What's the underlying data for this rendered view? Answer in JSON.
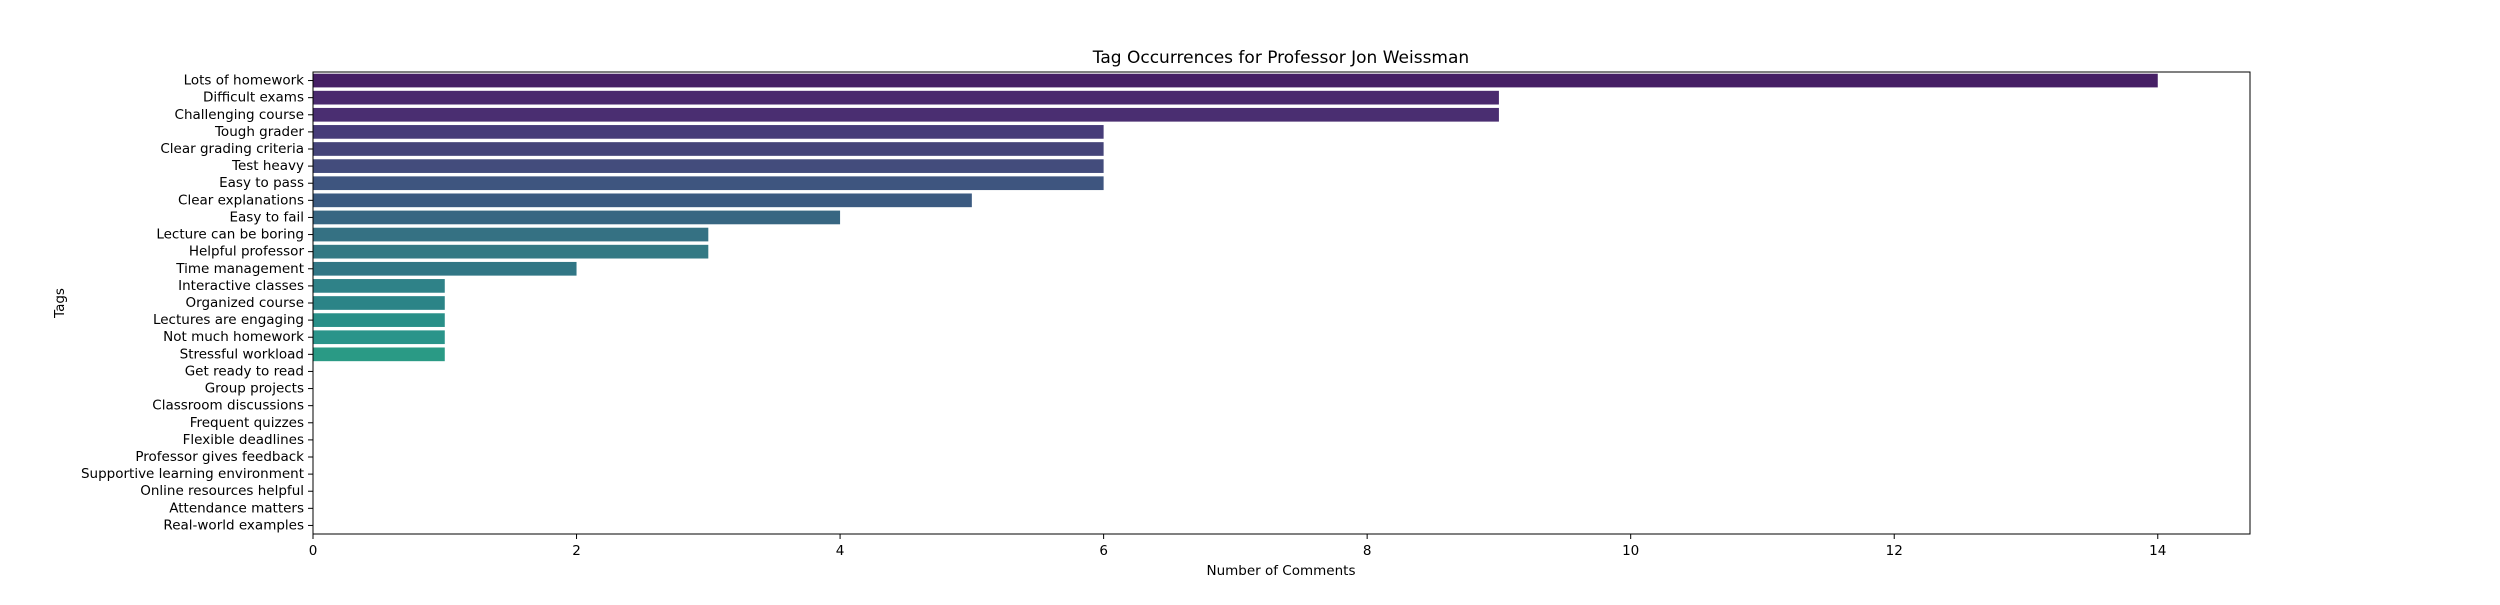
{
  "chart_data": {
    "type": "bar",
    "orientation": "horizontal",
    "title": "Tag Occurrences for Professor Jon Weissman",
    "xlabel": "Number of Comments",
    "ylabel": "Tags",
    "xlim": [
      0,
      14.7
    ],
    "xticks": [
      0,
      2,
      4,
      6,
      8,
      10,
      12,
      14
    ],
    "grid": false,
    "categories": [
      "Lots of homework",
      "Difficult exams",
      "Challenging course",
      "Tough grader",
      "Clear grading criteria",
      "Test heavy",
      "Easy to pass",
      "Clear explanations",
      "Easy to fail",
      "Lecture can be boring",
      "Helpful professor",
      "Time management",
      "Interactive classes",
      "Organized course",
      "Lectures are engaging",
      "Not much homework",
      "Stressful workload",
      "Get ready to read",
      "Group projects",
      "Classroom discussions",
      "Frequent quizzes",
      "Flexible deadlines",
      "Professor gives feedback",
      "Supportive learning environment",
      "Online resources helpful",
      "Attendance matters",
      "Real-world examples"
    ],
    "values": [
      14,
      9,
      9,
      6,
      6,
      6,
      6,
      5,
      4,
      3,
      3,
      2,
      1,
      1,
      1,
      1,
      1,
      0,
      0,
      0,
      0,
      0,
      0,
      0,
      0,
      0,
      0
    ],
    "colors": [
      "#461F65",
      "#4A2A6E",
      "#4A2E71",
      "#463C79",
      "#454479",
      "#434C7C",
      "#3E557F",
      "#3B5A80",
      "#386682",
      "#357183",
      "#337984",
      "#317685",
      "#2F8288",
      "#2B8487",
      "#298F88",
      "#2A948A",
      "#2A9A85",
      "#2EA083",
      "#34A77E",
      "#3DAF78",
      "#4AB672",
      "#5ABD6A",
      "#6CC461",
      "#80CB56",
      "#95D14B",
      "#ABD640",
      "#C3DB36"
    ]
  }
}
